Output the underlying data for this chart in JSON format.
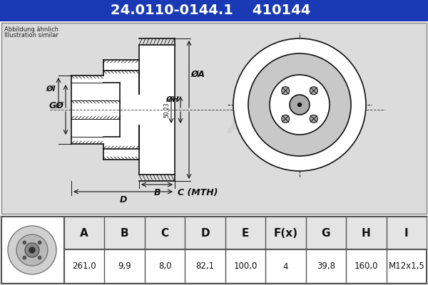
{
  "title_part": "24.0110-0144.1",
  "title_code": "410144",
  "subtitle1": "Abbildung ähnlich",
  "subtitle2": "Illustration similar",
  "title_bg": "#1a3ab5",
  "title_color": "#ffffff",
  "drawing_bg": "#dcdcdc",
  "table_headers": [
    "A",
    "B",
    "C",
    "D",
    "E",
    "F(x)",
    "G",
    "H",
    "I"
  ],
  "table_values": [
    "261,0",
    "9,9",
    "8,0",
    "82,1",
    "100,0",
    "4",
    "39,8",
    "160,0",
    "M12x1,5"
  ],
  "dim_50": "50,23",
  "label_c": "C (MTH)",
  "lc": "#111111"
}
